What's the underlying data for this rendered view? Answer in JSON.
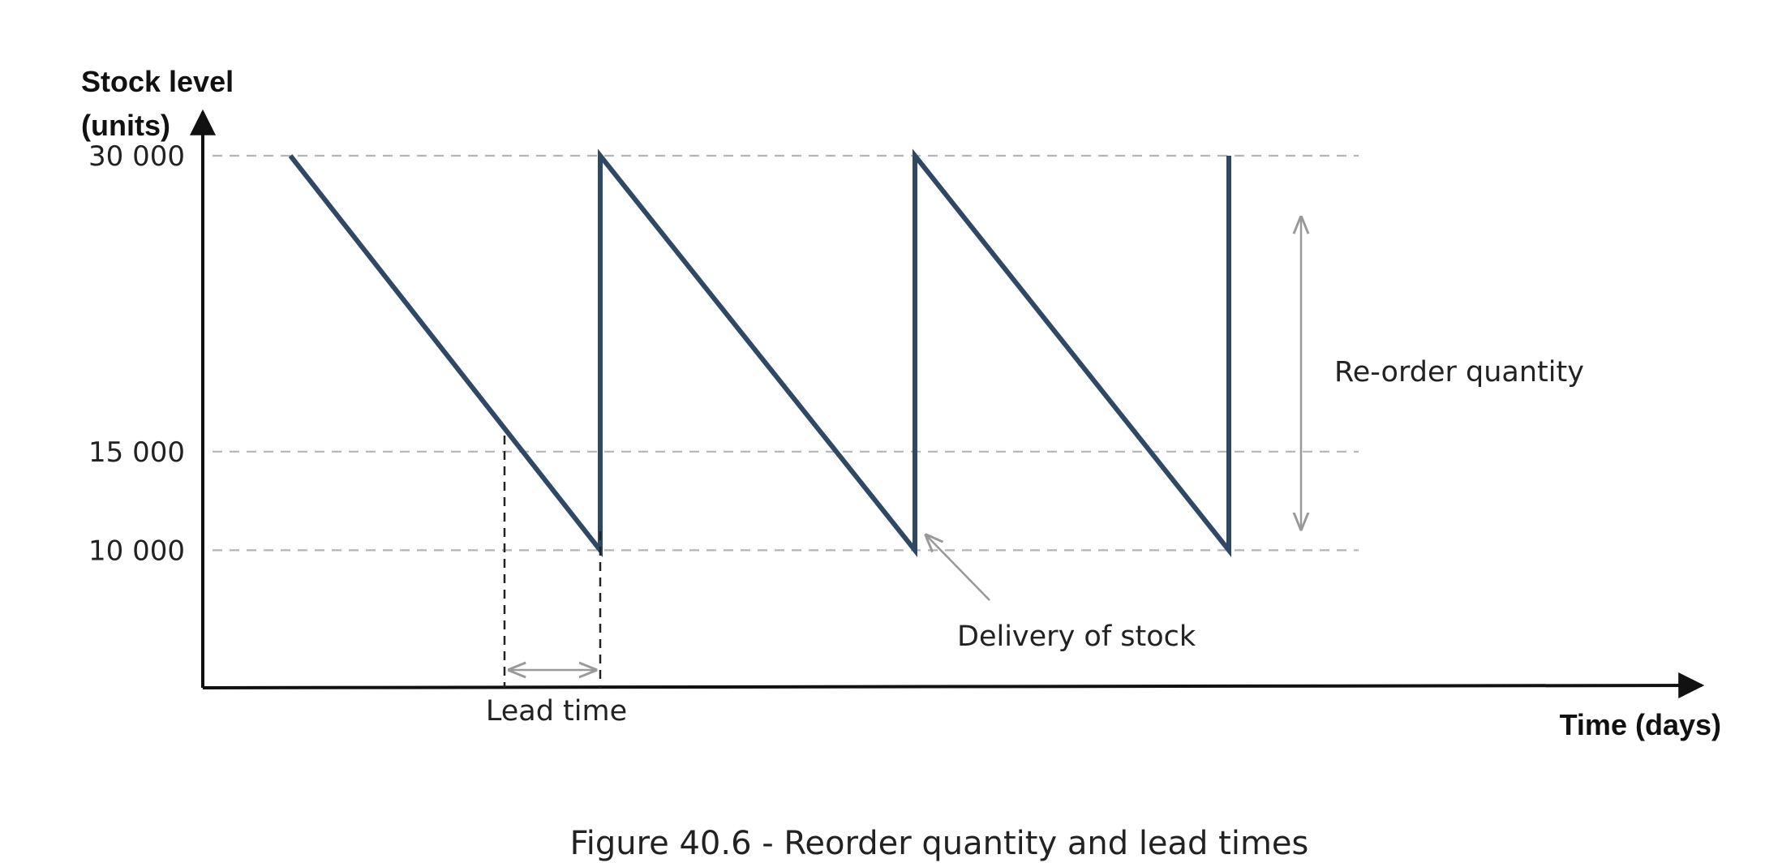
{
  "chart_data": {
    "type": "line",
    "title": "",
    "caption": "Figure 40.6 - Reorder quantity and lead times",
    "ylabel_line1": "Stock level",
    "ylabel_line2": "(units)",
    "xlabel": "Time (days)",
    "y_ticks": [
      {
        "value": 30000,
        "label": "30 000"
      },
      {
        "value": 15000,
        "label": "15 000"
      },
      {
        "value": 10000,
        "label": "10 000"
      }
    ],
    "ylim": [
      0,
      36000
    ],
    "grid": "dashed reference lines at 30000, 15000 and 10000",
    "series": [
      {
        "color": "#2e4866",
        "points": [
          [
            0,
            30000
          ],
          [
            1,
            10000
          ],
          [
            1,
            30000
          ],
          [
            2,
            10000
          ],
          [
            2,
            30000
          ],
          [
            3,
            10000
          ],
          [
            3,
            30000
          ]
        ]
      }
    ],
    "annotations": {
      "reorder_quantity": "Re-order quantity",
      "delivery": "Delivery of stock",
      "lead_time": "Lead time"
    },
    "colors": {
      "line": "#2e4866",
      "grid": "#b4b4b4",
      "annotation_arrow": "#999999",
      "axis": "#111111"
    }
  }
}
